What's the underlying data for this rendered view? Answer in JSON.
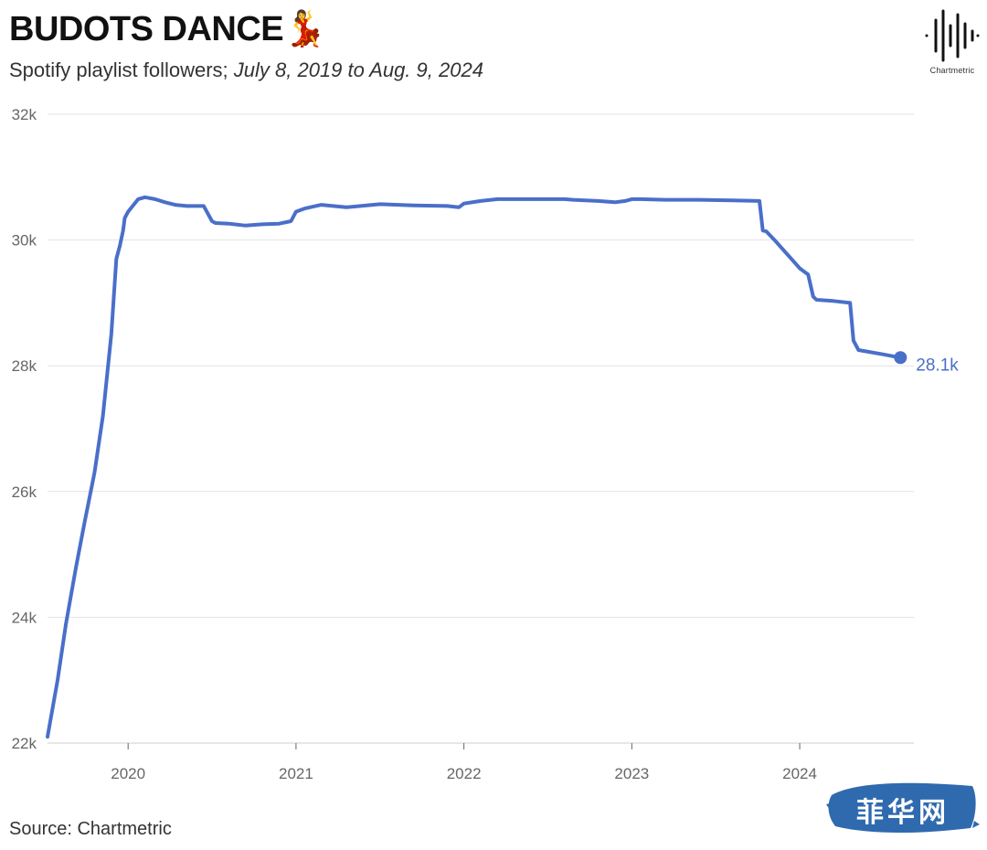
{
  "header": {
    "title": "BUDOTS DANCE💃",
    "subtitle_prefix": "Spotify playlist followers; ",
    "subtitle_range": "July 8, 2019 to Aug. 9, 2024"
  },
  "logo": {
    "label": "Chartmetric"
  },
  "footer": {
    "source": "Source: Chartmetric"
  },
  "watermark": {
    "text": "菲华网"
  },
  "colors": {
    "line": "#4a6fc9",
    "grid": "#e3e3e3",
    "watermark": "#2f6aaf"
  },
  "chart_data": {
    "type": "line",
    "title": "BUDOTS DANCE💃",
    "subtitle": "Spotify playlist followers; July 8, 2019 to Aug. 9, 2024",
    "xlabel": "",
    "ylabel": "",
    "xlim": [
      2019.52,
      2024.68
    ],
    "ylim": [
      22000,
      32000
    ],
    "y_ticks": [
      22000,
      24000,
      26000,
      28000,
      30000,
      32000
    ],
    "y_tick_labels": [
      "22k",
      "24k",
      "26k",
      "28k",
      "30k",
      "32k"
    ],
    "x_ticks": [
      2020,
      2021,
      2022,
      2023,
      2024
    ],
    "x_tick_labels": [
      "2020",
      "2021",
      "2022",
      "2023",
      "2024"
    ],
    "grid": true,
    "legend": "none",
    "end_label": "28.1k",
    "series": [
      {
        "x": [
          2019.52,
          2019.58,
          2019.63,
          2019.69,
          2019.74,
          2019.8,
          2019.85,
          2019.9,
          2019.93,
          2019.95,
          2019.97,
          2019.98,
          2020.0,
          2020.03,
          2020.06,
          2020.1,
          2020.16,
          2020.22,
          2020.28,
          2020.35,
          2020.45,
          2020.5,
          2020.52,
          2020.6,
          2020.7,
          2020.8,
          2020.9,
          2020.97,
          2021.0,
          2021.05,
          2021.15,
          2021.3,
          2021.5,
          2021.7,
          2021.9,
          2021.97,
          2022.0,
          2022.1,
          2022.2,
          2022.4,
          2022.6,
          2022.65,
          2022.8,
          2022.9,
          2022.96,
          2023.0,
          2023.05,
          2023.2,
          2023.4,
          2023.6,
          2023.76,
          2023.78,
          2023.8,
          2023.85,
          2023.9,
          2023.95,
          2024.0,
          2024.05,
          2024.08,
          2024.1,
          2024.2,
          2024.3,
          2024.32,
          2024.35,
          2024.5,
          2024.6
        ],
        "y": [
          22100,
          23000,
          23900,
          24800,
          25500,
          26300,
          27200,
          28500,
          29700,
          29900,
          30150,
          30350,
          30450,
          30550,
          30650,
          30680,
          30650,
          30600,
          30560,
          30540,
          30540,
          30300,
          30270,
          30260,
          30230,
          30250,
          30260,
          30300,
          30450,
          30500,
          30560,
          30520,
          30570,
          30550,
          30540,
          30520,
          30580,
          30620,
          30650,
          30650,
          30650,
          30640,
          30620,
          30600,
          30620,
          30650,
          30650,
          30640,
          30640,
          30630,
          30620,
          30150,
          30140,
          30000,
          29850,
          29700,
          29550,
          29450,
          29100,
          29050,
          29030,
          29000,
          28400,
          28250,
          28180,
          28130
        ]
      }
    ]
  }
}
